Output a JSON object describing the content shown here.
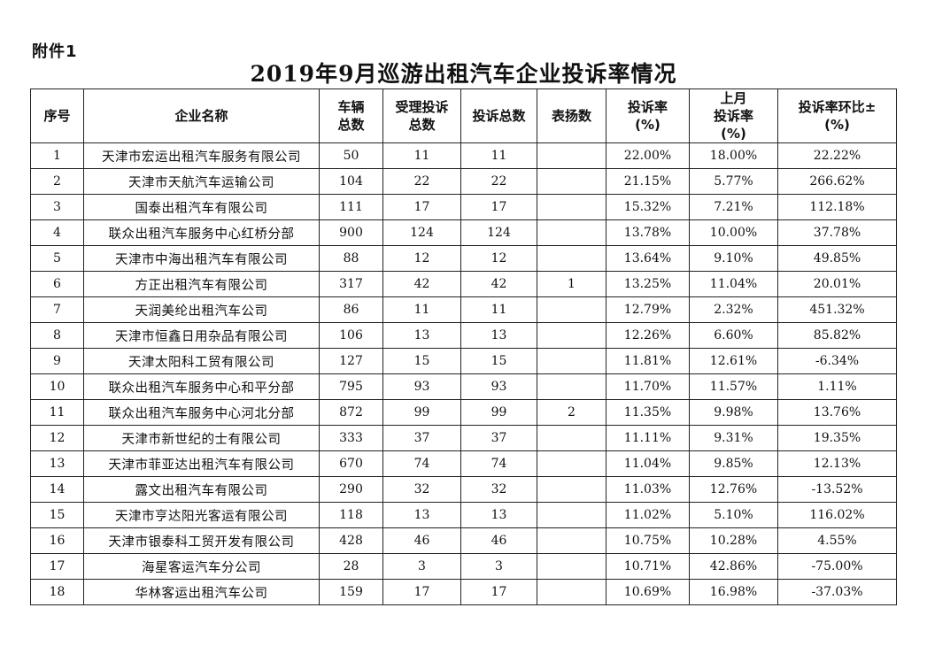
{
  "attachment_label": "附件1",
  "title": "2019年9月巡游出租汽车企业投诉率情况",
  "headers": [
    "序号",
    "企业名称",
    "车辆\n总数",
    "受理投诉\n总数",
    "投诉总数",
    "表扬数",
    "投诉率\n(%)",
    "上月\n投诉率\n(%)",
    "投诉率环比±\n(%)"
  ],
  "rows": [
    [
      "1",
      "天津市宏运出租汽车服务有限公司",
      "50",
      "11",
      "11",
      "",
      "22.00%",
      "18.00%",
      "22.22%"
    ],
    [
      "2",
      "天津市天航汽车运输公司",
      "104",
      "22",
      "22",
      "",
      "21.15%",
      "5.77%",
      "266.62%"
    ],
    [
      "3",
      "国泰出租汽车有限公司",
      "111",
      "17",
      "17",
      "",
      "15.32%",
      "7.21%",
      "112.18%"
    ],
    [
      "4",
      "联众出租汽车服务中心红桥分部",
      "900",
      "124",
      "124",
      "",
      "13.78%",
      "10.00%",
      "37.78%"
    ],
    [
      "5",
      "天津市中海出租汽车有限公司",
      "88",
      "12",
      "12",
      "",
      "13.64%",
      "9.10%",
      "49.85%"
    ],
    [
      "6",
      "方正出租汽车有限公司",
      "317",
      "42",
      "42",
      "1",
      "13.25%",
      "11.04%",
      "20.01%"
    ],
    [
      "7",
      "天润美纶出租汽车公司",
      "86",
      "11",
      "11",
      "",
      "12.79%",
      "2.32%",
      "451.32%"
    ],
    [
      "8",
      "天津市恒鑫日用杂品有限公司",
      "106",
      "13",
      "13",
      "",
      "12.26%",
      "6.60%",
      "85.82%"
    ],
    [
      "9",
      "天津太阳科工贸有限公司",
      "127",
      "15",
      "15",
      "",
      "11.81%",
      "12.61%",
      "-6.34%"
    ],
    [
      "10",
      "联众出租汽车服务中心和平分部",
      "795",
      "93",
      "93",
      "",
      "11.70%",
      "11.57%",
      "1.11%"
    ],
    [
      "11",
      "联众出租汽车服务中心河北分部",
      "872",
      "99",
      "99",
      "2",
      "11.35%",
      "9.98%",
      "13.76%"
    ],
    [
      "12",
      "天津市新世纪的士有限公司",
      "333",
      "37",
      "37",
      "",
      "11.11%",
      "9.31%",
      "19.35%"
    ],
    [
      "13",
      "天津市菲亚达出租汽车有限公司",
      "670",
      "74",
      "74",
      "",
      "11.04%",
      "9.85%",
      "12.13%"
    ],
    [
      "14",
      "露文出租汽车有限公司",
      "290",
      "32",
      "32",
      "",
      "11.03%",
      "12.76%",
      "-13.52%"
    ],
    [
      "15",
      "天津市亨达阳光客运有限公司",
      "118",
      "13",
      "13",
      "",
      "11.02%",
      "5.10%",
      "116.02%"
    ],
    [
      "16",
      "天津市银泰科工贸开发有限公司",
      "428",
      "46",
      "46",
      "",
      "10.75%",
      "10.28%",
      "4.55%"
    ],
    [
      "17",
      "海星客运汽车分公司",
      "28",
      "3",
      "3",
      "",
      "10.71%",
      "42.86%",
      "-75.00%"
    ],
    [
      "18",
      "华林客运出租汽车公司",
      "159",
      "17",
      "17",
      "",
      "10.69%",
      "16.98%",
      "-37.03%"
    ]
  ]
}
